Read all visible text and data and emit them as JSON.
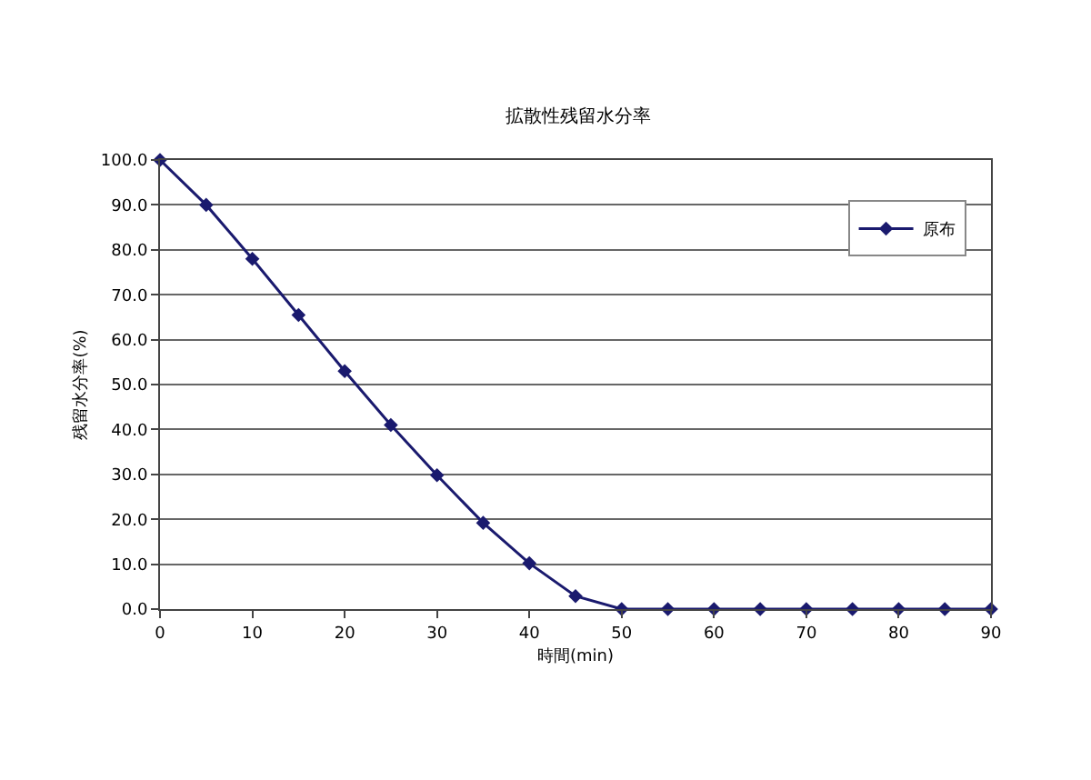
{
  "chart_data": {
    "type": "line",
    "title": "拡散性残留水分率",
    "xlabel": "時間(min)",
    "ylabel": "残留水分率(%)",
    "x": [
      0,
      5,
      10,
      15,
      20,
      25,
      30,
      35,
      40,
      45,
      50,
      55,
      60,
      65,
      70,
      75,
      80,
      85,
      90
    ],
    "series": [
      {
        "name": "原布",
        "color": "#1a1a6e",
        "values": [
          100,
          90,
          78,
          65.5,
          53,
          41,
          29.8,
          19.2,
          10.2,
          2.9,
          0,
          0,
          0,
          0,
          0,
          0,
          0,
          0,
          0
        ]
      }
    ],
    "xlim": [
      0,
      90
    ],
    "xticks": [
      0,
      10,
      20,
      30,
      40,
      50,
      60,
      70,
      80,
      90
    ],
    "ylim": [
      0,
      100
    ],
    "yticks": [
      {
        "value": 0,
        "label": "0.0"
      },
      {
        "value": 10,
        "label": "10.0"
      },
      {
        "value": 20,
        "label": "20.0"
      },
      {
        "value": 30,
        "label": "30.0"
      },
      {
        "value": 40,
        "label": "40.0"
      },
      {
        "value": 50,
        "label": "50.0"
      },
      {
        "value": 60,
        "label": "60.0"
      },
      {
        "value": 70,
        "label": "70.0"
      },
      {
        "value": 80,
        "label": "80.0"
      },
      {
        "value": 90,
        "label": "90.0"
      },
      {
        "value": 100,
        "label": "100.0"
      }
    ],
    "grid": "y",
    "legend": "top right",
    "marker": "diamond",
    "line_style": "solid"
  }
}
